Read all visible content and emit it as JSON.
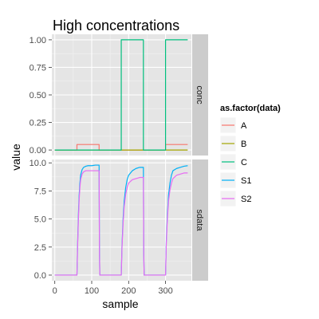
{
  "chart_data": {
    "type": "line",
    "title": "High concentrations",
    "xlabel": "sample",
    "ylabel": "value",
    "xlim": [
      -8,
      370
    ],
    "xticks": [
      0,
      100,
      200,
      300
    ],
    "grid": true,
    "legend": {
      "title": "as.factor(data)",
      "position": "right",
      "entries": [
        {
          "name": "A",
          "color": "#F8766D"
        },
        {
          "name": "B",
          "color": "#A3A500"
        },
        {
          "name": "C",
          "color": "#00BF7D"
        },
        {
          "name": "S1",
          "color": "#00B0F6"
        },
        {
          "name": "S2",
          "color": "#E76BF3"
        }
      ]
    },
    "panels": [
      {
        "strip": "conc",
        "ylim": [
          -0.05,
          1.05
        ],
        "yticks": [
          0.0,
          0.25,
          0.5,
          0.75,
          1.0
        ],
        "ytick_labels": [
          "0.00",
          "0.25",
          "0.50",
          "0.75",
          "1.00"
        ],
        "series": [
          {
            "name": "A",
            "color": "#F8766D",
            "x": [
              0,
              60,
              60,
              120,
              120,
              300,
              300,
              360
            ],
            "y": [
              0,
              0,
              0.05,
              0.05,
              0,
              0,
              0.05,
              0.05
            ]
          },
          {
            "name": "B",
            "color": "#A3A500",
            "x": [
              0,
              360
            ],
            "y": [
              0,
              0
            ]
          },
          {
            "name": "C",
            "color": "#00BF7D",
            "x": [
              0,
              180,
              180,
              240,
              240,
              300,
              300,
              360
            ],
            "y": [
              0,
              0,
              1,
              1,
              0,
              0,
              1,
              1
            ]
          }
        ]
      },
      {
        "strip": "sdata",
        "ylim": [
          -0.5,
          10.3
        ],
        "yticks": [
          0,
          2.5,
          5,
          7.5,
          10
        ],
        "ytick_labels": [
          "0.0",
          "2.5",
          "5.0",
          "7.5",
          "10.0"
        ],
        "series": [
          {
            "name": "S1",
            "color": "#00B0F6",
            "x": [
              0,
              60,
              62,
              64,
              66,
              68,
              70,
              74,
              78,
              84,
              90,
              100,
              110,
              120,
              121,
              122,
              180,
              182,
              185,
              188,
              192,
              196,
              200,
              210,
              220,
              230,
              240,
              241,
              242,
              300,
              302,
              305,
              308,
              312,
              316,
              320,
              330,
              340,
              350,
              360
            ],
            "y": [
              0,
              0,
              3.0,
              5.4,
              7.1,
              8.2,
              8.9,
              9.4,
              9.6,
              9.7,
              9.75,
              9.75,
              9.8,
              9.8,
              2.0,
              0,
              0,
              2.6,
              5.0,
              6.6,
              7.8,
              8.5,
              8.9,
              9.3,
              9.5,
              9.6,
              9.6,
              2.0,
              0,
              0,
              3.0,
              5.4,
              7.1,
              8.2,
              8.9,
              9.3,
              9.5,
              9.6,
              9.7,
              9.75
            ]
          },
          {
            "name": "S2",
            "color": "#E76BF3",
            "x": [
              0,
              60,
              62,
              64,
              66,
              68,
              70,
              74,
              78,
              84,
              90,
              100,
              110,
              120,
              121,
              122,
              180,
              182,
              185,
              188,
              192,
              196,
              200,
              210,
              220,
              230,
              240,
              241,
              242,
              300,
              302,
              305,
              308,
              312,
              316,
              320,
              330,
              340,
              350,
              360
            ],
            "y": [
              0,
              0,
              2.8,
              5.0,
              6.7,
              7.8,
              8.5,
              9.0,
              9.2,
              9.3,
              9.3,
              9.3,
              9.3,
              9.3,
              1.8,
              0,
              0,
              2.4,
              4.6,
              6.1,
              7.2,
              7.8,
              8.2,
              8.5,
              8.6,
              8.7,
              8.7,
              1.8,
              0,
              0,
              2.8,
              5.0,
              6.6,
              7.6,
              8.2,
              8.6,
              8.9,
              9.0,
              9.1,
              9.1
            ]
          }
        ]
      }
    ]
  }
}
